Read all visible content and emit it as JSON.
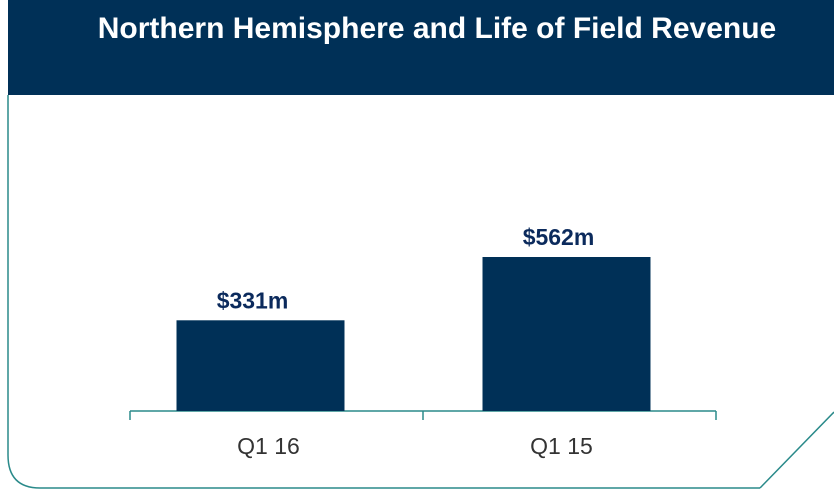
{
  "chart_data": {
    "type": "bar",
    "title": "Northern Hemisphere and Life of Field Revenue",
    "categories": [
      "Q1 16",
      "Q1 15"
    ],
    "values": [
      331,
      562
    ],
    "value_labels": [
      "$331m",
      "$562m"
    ],
    "color": "#003057"
  }
}
